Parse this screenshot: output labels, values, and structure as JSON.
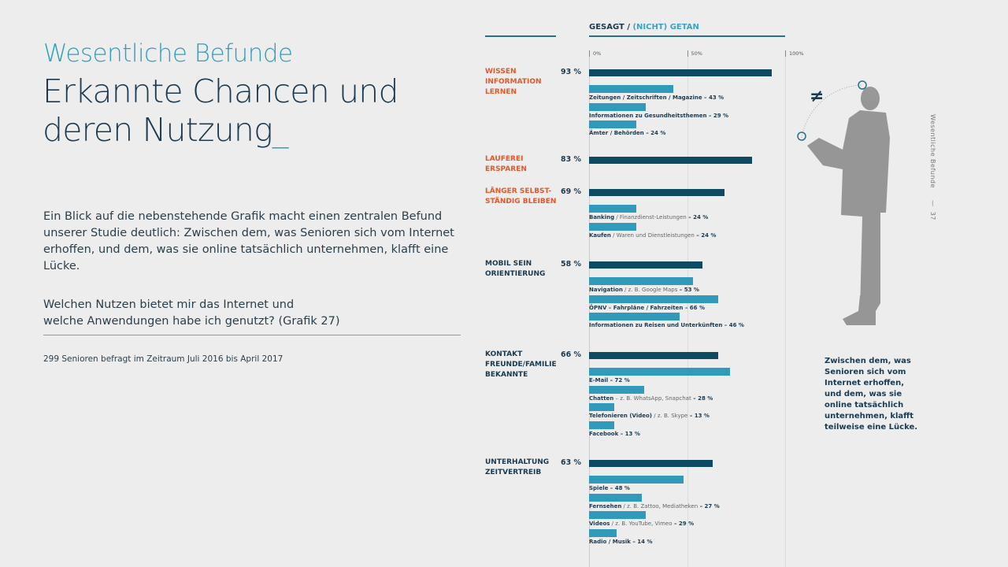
{
  "header": {
    "kicker": "Wesentliche Befunde",
    "title_line1": "Erkannte Chancen und",
    "title_line2": "deren Nutzung",
    "title_cursor": "_"
  },
  "intro": "Ein Blick auf die nebenstehende Grafik macht einen zentralen Befund unserer Studie deutlich: Zwischen dem, was Senioren sich vom Internet erhoffen, und dem, was sie online tatsächlich unternehmen, klafft eine Lücke.",
  "question_line1": "Welchen Nutzen bietet mir das Internet und",
  "question_line2": "welche Anwendungen habe ich genutzt? (Grafik 27)",
  "note": "299 Senioren befragt im Zeitraum Juli 2016 bis April 2017",
  "side_note": "Zwischen dem, was Senioren sich vom Internet erhoffen, und dem, was sie online tatsächlich unternehmen, klafft teilweise eine Lücke.",
  "running_head": {
    "section": "Wesentliche Befunde",
    "separator": "—",
    "page": "37"
  },
  "icon": "not-equal-icon",
  "colors": {
    "accent": "#2f9fbd",
    "said": "#0e4a62",
    "done": "#3199ba",
    "category_orange": "#e0592a",
    "category_dark": "#1b3a50"
  },
  "chart_data": {
    "type": "bar",
    "title_main": "GESAGT /",
    "title_sub": "(NICHT) GETAN",
    "ticks": [
      "0%",
      "50%",
      "100%"
    ],
    "xlim": [
      0,
      100
    ],
    "groups": [
      {
        "category": [
          "WISSEN",
          "INFORMATION",
          "LERNEN"
        ],
        "color": "orange",
        "said": 93,
        "items": [
          {
            "bold": "Zeitungen / Zeitschriften / Magazine",
            "light": "",
            "value": 43
          },
          {
            "bold": "Informationen zu Gesundheitsthemen",
            "light": "",
            "value": 29
          },
          {
            "bold": "Ämter / Behörden",
            "light": "",
            "value": 24
          }
        ]
      },
      {
        "category": [
          "LAUFEREI",
          "ERSPAREN"
        ],
        "color": "orange",
        "said": 83,
        "items": []
      },
      {
        "category": [
          "LÄNGER SELBST-",
          "STÄNDIG BLEIBEN"
        ],
        "color": "orange",
        "said": 69,
        "items": [
          {
            "bold": "Banking",
            "light": " / Finanzdienst-Leistungen",
            "value": 24
          },
          {
            "bold": "Kaufen",
            "light": " / Waren und Dienstleistungen",
            "value": 24
          }
        ]
      },
      {
        "category": [
          "MOBIL SEIN",
          "ORIENTIERUNG"
        ],
        "color": "dark",
        "said": 58,
        "items": [
          {
            "bold": "Navigation",
            "light": " / z. B. Google Maps",
            "value": 53
          },
          {
            "bold": "ÖPNV – Fahrpläne / Fahrzeiten",
            "light": "",
            "value": 66
          },
          {
            "bold": "Informationen zu Reisen und Unterkünften",
            "light": "",
            "value": 46
          }
        ]
      },
      {
        "category": [
          "KONTAKT",
          "FREUNDE/FAMILIE",
          "BEKANNTE"
        ],
        "color": "dark",
        "said": 66,
        "items": [
          {
            "bold": "E-Mail",
            "light": "",
            "value": 72
          },
          {
            "bold": "Chatten",
            "light": " – z. B. WhatsApp, Snapchat",
            "value": 28
          },
          {
            "bold": "Telefonieren (Video)",
            "light": " / z. B. Skype",
            "value": 13
          },
          {
            "bold": "Facebook",
            "light": "",
            "value": 13
          }
        ]
      },
      {
        "category": [
          "UNTERHALTUNG",
          "ZEITVERTREIB"
        ],
        "color": "dark",
        "said": 63,
        "items": [
          {
            "bold": "Spiele",
            "light": "",
            "value": 48
          },
          {
            "bold": "Fernsehen",
            "light": " / z. B. Zattoo, Mediatheken",
            "value": 27
          },
          {
            "bold": "Videos",
            "light": " / z. B. YouTube, Vimeo",
            "value": 29
          },
          {
            "bold": "Radio / Musik",
            "light": "",
            "value": 14
          }
        ]
      }
    ]
  }
}
